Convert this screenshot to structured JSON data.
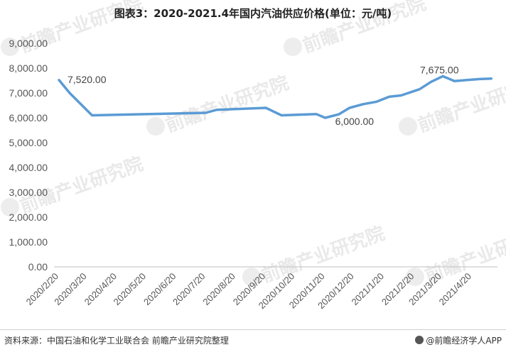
{
  "footer": {
    "source": "资料来源：中国石油和化学工业联合会 前瞻产业研究院整理",
    "brand": "@前瞻经济学人APP"
  },
  "watermark": {
    "text": "前瞻产业研究院"
  },
  "chart_data": {
    "type": "line",
    "title": "图表3：2020-2021.4年国内汽油供应价格(单位：元/吨)",
    "xlabel": "",
    "ylabel": "",
    "ylim": [
      0,
      9000
    ],
    "y_ticks": [
      "0.00",
      "1,000.00",
      "2,000.00",
      "3,000.00",
      "4,000.00",
      "5,000.00",
      "6,000.00",
      "7,000.00",
      "8,000.00",
      "9,000.00"
    ],
    "x_tick_labels": [
      "2020/2/20",
      "2020/3/20",
      "2020/4/20",
      "2020/5/20",
      "2020/6/20",
      "2020/7/20",
      "2020/8/20",
      "2020/9/20",
      "2020/10/20",
      "2020/11/20",
      "2020/12/20",
      "2021/1/20",
      "2021/2/20",
      "2021/3/20",
      "2021/4/20"
    ],
    "grid": false,
    "legend": "none",
    "line_color": "#5b9bd5",
    "series": [
      {
        "x": [
          "2020-02-20",
          "2020-03-02",
          "2020-03-25",
          "2020-07-20",
          "2020-07-31",
          "2020-09-20",
          "2020-10-06",
          "2020-11-11",
          "2020-11-20",
          "2020-12-04",
          "2020-12-15",
          "2020-12-29",
          "2021-01-12",
          "2021-01-25",
          "2021-02-06",
          "2021-02-25",
          "2021-03-09",
          "2021-03-21",
          "2021-04-02",
          "2021-04-15",
          "2021-04-28",
          "2021-05-10"
        ],
        "values": [
          7520,
          7000,
          6100,
          6200,
          6320,
          6400,
          6100,
          6150,
          6000,
          6140,
          6400,
          6550,
          6650,
          6850,
          6900,
          7150,
          7450,
          7675,
          7480,
          7520,
          7560,
          7580
        ]
      }
    ],
    "annotations": [
      {
        "text": "7,520.00",
        "x": "2020-02-20",
        "y": 7520
      },
      {
        "text": "6,000.00",
        "x": "2020-11-20",
        "y": 6000
      },
      {
        "text": "7,675.00",
        "x": "2021-03-21",
        "y": 7675
      }
    ]
  }
}
